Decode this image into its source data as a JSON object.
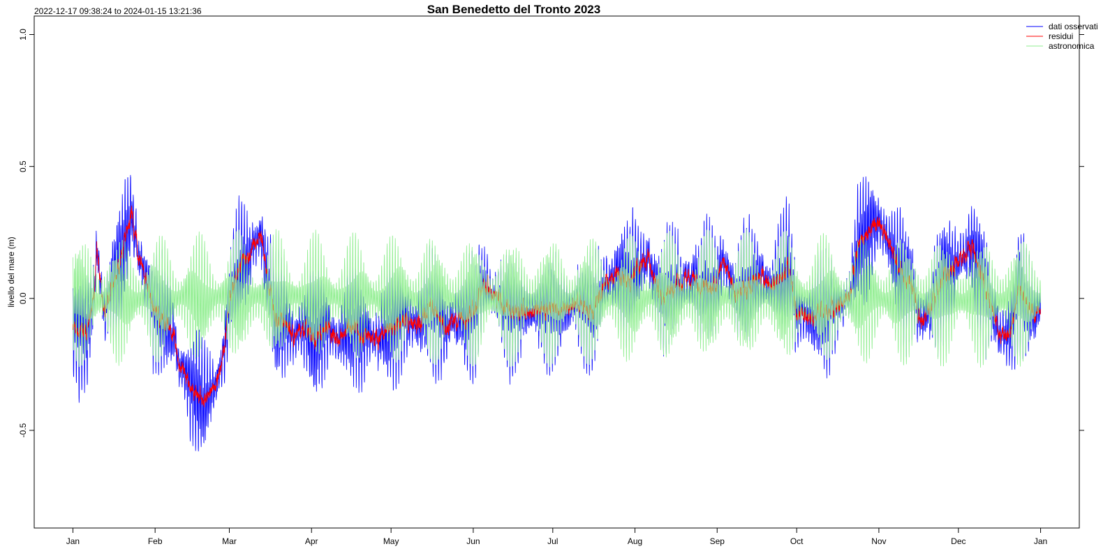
{
  "chart_data": {
    "type": "line",
    "title": "San Benedetto del Tronto 2023",
    "subtitle": "2022-12-17 09:38:24 to 2024-01-15 13:21:36",
    "xlabel": "",
    "ylabel": "livello del mare (m)",
    "xlim_days_from_jan1": [
      -14.6,
      379.6
    ],
    "ylim": [
      -0.87,
      1.07
    ],
    "yticks": [
      1.0,
      0.5,
      0.0,
      -0.5
    ],
    "ytick_labels": [
      "1.0",
      "0.5",
      "0.0",
      "-0.5"
    ],
    "xticks_days": [
      0,
      31,
      59,
      90,
      120,
      151,
      181,
      212,
      243,
      273,
      304,
      334,
      365
    ],
    "xtick_labels": [
      "Jan",
      "Feb",
      "Mar",
      "Apr",
      "May",
      "Jun",
      "Jul",
      "Aug",
      "Sep",
      "Oct",
      "Nov",
      "Dec",
      "Jan"
    ],
    "grid": false,
    "legend_position": "top-right",
    "series": [
      {
        "name": "dati osservati",
        "color": "#0000ff",
        "note": "residui + astronomica"
      },
      {
        "name": "residui",
        "color": "#ff0000",
        "points_day_value": [
          [
            0,
            -0.12
          ],
          [
            5,
            -0.13
          ],
          [
            8,
            0.0
          ],
          [
            9,
            0.18
          ],
          [
            12,
            -0.05
          ],
          [
            15,
            0.05
          ],
          [
            18,
            0.15
          ],
          [
            20,
            0.25
          ],
          [
            22,
            0.32
          ],
          [
            25,
            0.15
          ],
          [
            28,
            0.05
          ],
          [
            31,
            -0.05
          ],
          [
            35,
            -0.1
          ],
          [
            38,
            -0.15
          ],
          [
            40,
            -0.25
          ],
          [
            43,
            -0.3
          ],
          [
            46,
            -0.35
          ],
          [
            49,
            -0.4
          ],
          [
            52,
            -0.35
          ],
          [
            55,
            -0.3
          ],
          [
            57,
            -0.2
          ],
          [
            59,
            0.0
          ],
          [
            62,
            0.1
          ],
          [
            65,
            0.15
          ],
          [
            68,
            0.2
          ],
          [
            71,
            0.25
          ],
          [
            73,
            0.1
          ],
          [
            76,
            -0.05
          ],
          [
            80,
            -0.1
          ],
          [
            85,
            -0.15
          ],
          [
            88,
            -0.1
          ],
          [
            90,
            -0.15
          ],
          [
            95,
            -0.1
          ],
          [
            100,
            -0.15
          ],
          [
            105,
            -0.1
          ],
          [
            110,
            -0.15
          ],
          [
            115,
            -0.15
          ],
          [
            120,
            -0.1
          ],
          [
            125,
            -0.08
          ],
          [
            130,
            -0.1
          ],
          [
            135,
            -0.02
          ],
          [
            140,
            -0.1
          ],
          [
            145,
            -0.08
          ],
          [
            151,
            -0.05
          ],
          [
            155,
            0.05
          ],
          [
            160,
            0.0
          ],
          [
            165,
            -0.05
          ],
          [
            170,
            -0.05
          ],
          [
            175,
            -0.05
          ],
          [
            181,
            -0.03
          ],
          [
            186,
            -0.05
          ],
          [
            190,
            -0.02
          ],
          [
            195,
            -0.05
          ],
          [
            200,
            0.05
          ],
          [
            205,
            0.1
          ],
          [
            210,
            0.05
          ],
          [
            212,
            0.1
          ],
          [
            217,
            0.15
          ],
          [
            222,
            0.0
          ],
          [
            227,
            0.05
          ],
          [
            232,
            0.08
          ],
          [
            237,
            0.05
          ],
          [
            243,
            0.05
          ],
          [
            245,
            0.15
          ],
          [
            250,
            0.0
          ],
          [
            255,
            0.05
          ],
          [
            260,
            0.08
          ],
          [
            265,
            0.05
          ],
          [
            270,
            0.12
          ],
          [
            273,
            -0.05
          ],
          [
            278,
            -0.08
          ],
          [
            283,
            -0.05
          ],
          [
            288,
            -0.03
          ],
          [
            293,
            0.0
          ],
          [
            296,
            0.2
          ],
          [
            300,
            0.25
          ],
          [
            304,
            0.3
          ],
          [
            308,
            0.2
          ],
          [
            312,
            0.1
          ],
          [
            316,
            0.05
          ],
          [
            320,
            -0.1
          ],
          [
            325,
            0.0
          ],
          [
            329,
            0.1
          ],
          [
            334,
            0.15
          ],
          [
            338,
            0.2
          ],
          [
            342,
            0.1
          ],
          [
            346,
            0.0
          ],
          [
            350,
            -0.15
          ],
          [
            353,
            -0.15
          ],
          [
            357,
            0.05
          ],
          [
            361,
            -0.05
          ],
          [
            365,
            -0.05
          ]
        ]
      },
      {
        "name": "astronomica",
        "color": "#90ee90",
        "amplitude_spring_m": 0.22,
        "amplitude_neap_m": 0.06,
        "spring_neap_cycle_days": 14.77,
        "first_spring_day": 3
      }
    ]
  }
}
